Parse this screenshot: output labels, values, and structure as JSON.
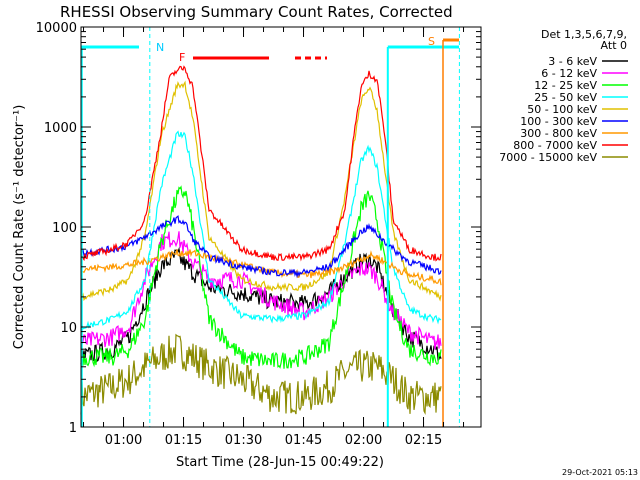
{
  "chart_data": {
    "type": "line",
    "title": "RHESSI Observing Summary Count Rates, Corrected",
    "xlabel": "Start Time (28-Jun-15 00:49:22)",
    "ylabel": "Corrected Count Rate (s⁻¹ detector⁻¹)",
    "ylabel_plain": "Corrected Count Rate (s",
    "ylabel_sup1": "-1",
    "ylabel_mid": " detector",
    "ylabel_sup2": "-1",
    "ylabel_end": ")",
    "ylim": [
      1,
      10000
    ],
    "yscale": "log",
    "xlim_minutes": [
      0,
      100
    ],
    "x_ticks": [
      {
        "label": "01:00",
        "minute": 10.63
      },
      {
        "label": "01:15",
        "minute": 25.63
      },
      {
        "label": "01:30",
        "minute": 40.63
      },
      {
        "label": "01:45",
        "minute": 55.63
      },
      {
        "label": "02:00",
        "minute": 70.63
      },
      {
        "label": "02:15",
        "minute": 85.63
      }
    ],
    "y_ticks": [
      {
        "label": "1",
        "value": 1
      },
      {
        "label": "10",
        "value": 10
      },
      {
        "label": "100",
        "value": 100
      },
      {
        "label": "1000",
        "value": 1000
      },
      {
        "label": "10000",
        "value": 10000
      }
    ],
    "legend_header": [
      "Det 1,3,5,6,7,9,",
      "Att 0"
    ],
    "series": [
      {
        "name": "3 - 6 keV",
        "color": "#000000",
        "x": [
          0,
          8,
          12,
          16,
          20,
          24,
          28,
          32,
          40,
          48,
          56,
          62,
          66,
          70,
          72,
          74,
          78,
          82,
          88,
          90
        ],
        "values": [
          5,
          6,
          8,
          18,
          40,
          52,
          35,
          25,
          22,
          18,
          17,
          22,
          32,
          45,
          48,
          40,
          15,
          8,
          6,
          5
        ]
      },
      {
        "name": "6 - 12 keV",
        "color": "#ff00ff",
        "x": [
          0,
          8,
          12,
          16,
          20,
          24,
          28,
          32,
          40,
          48,
          56,
          62,
          66,
          70,
          72,
          74,
          78,
          82,
          88,
          90
        ],
        "values": [
          7,
          8,
          10,
          30,
          70,
          80,
          45,
          30,
          30,
          18,
          14,
          20,
          30,
          38,
          38,
          32,
          14,
          9,
          7,
          7
        ]
      },
      {
        "name": "12 - 25 keV",
        "color": "#00ff00",
        "x": [
          0,
          8,
          12,
          16,
          20,
          24,
          26,
          28,
          32,
          40,
          48,
          56,
          62,
          66,
          70,
          72,
          74,
          78,
          82,
          88,
          90
        ],
        "values": [
          5,
          5,
          6,
          12,
          70,
          200,
          230,
          100,
          12,
          5,
          4.5,
          5,
          7,
          30,
          150,
          210,
          120,
          15,
          6,
          5,
          5
        ]
      },
      {
        "name": "25 - 50 keV",
        "color": "#00ffff",
        "x": [
          0,
          8,
          12,
          16,
          20,
          24,
          26,
          28,
          32,
          40,
          48,
          56,
          62,
          66,
          70,
          72,
          74,
          78,
          82,
          88,
          90
        ],
        "values": [
          10,
          12,
          15,
          30,
          250,
          850,
          800,
          350,
          30,
          13,
          12,
          13,
          18,
          70,
          450,
          620,
          400,
          40,
          15,
          12,
          12
        ]
      },
      {
        "name": "50 - 100 keV",
        "color": "#e0c000",
        "x": [
          0,
          8,
          12,
          16,
          20,
          24,
          26,
          28,
          32,
          40,
          48,
          56,
          62,
          66,
          70,
          72,
          74,
          78,
          82,
          88,
          90
        ],
        "values": [
          20,
          24,
          30,
          80,
          800,
          2600,
          2700,
          1200,
          80,
          30,
          25,
          25,
          35,
          200,
          1800,
          2500,
          1500,
          90,
          30,
          22,
          20
        ]
      },
      {
        "name": "100 - 300 keV",
        "color": "#0000ff",
        "x": [
          0,
          8,
          12,
          16,
          20,
          24,
          26,
          28,
          32,
          40,
          48,
          56,
          62,
          66,
          70,
          72,
          74,
          78,
          82,
          88,
          90
        ],
        "values": [
          55,
          60,
          65,
          80,
          100,
          120,
          110,
          75,
          50,
          40,
          35,
          35,
          40,
          60,
          90,
          100,
          85,
          60,
          45,
          38,
          36
        ]
      },
      {
        "name": "300 - 800 keV",
        "color": "#ff9900",
        "x": [
          0,
          8,
          12,
          16,
          20,
          24,
          28,
          32,
          40,
          48,
          56,
          62,
          66,
          70,
          72,
          74,
          78,
          82,
          88,
          90
        ],
        "values": [
          38,
          40,
          42,
          45,
          50,
          55,
          55,
          50,
          42,
          35,
          33,
          35,
          40,
          48,
          52,
          50,
          40,
          33,
          30,
          28
        ]
      },
      {
        "name": "800 - 7000 keV",
        "color": "#ff0000",
        "x": [
          0,
          8,
          12,
          16,
          20,
          22,
          24,
          26,
          28,
          32,
          40,
          48,
          56,
          62,
          66,
          68,
          70,
          72,
          74,
          76,
          78,
          82,
          88,
          90
        ],
        "values": [
          50,
          60,
          70,
          120,
          900,
          3000,
          3700,
          3900,
          2500,
          150,
          60,
          50,
          50,
          60,
          150,
          700,
          2500,
          3400,
          3000,
          800,
          120,
          60,
          50,
          50
        ]
      },
      {
        "name": "7000 - 15000 keV",
        "color": "#8b8b00",
        "x": [
          0,
          8,
          12,
          16,
          20,
          24,
          28,
          32,
          40,
          48,
          56,
          62,
          66,
          70,
          74,
          78,
          82,
          88,
          90
        ],
        "values": [
          2,
          2.5,
          3,
          4,
          5,
          6,
          5,
          4,
          3,
          2,
          2,
          2.5,
          3.5,
          4,
          4,
          3,
          2,
          2,
          2
        ]
      }
    ],
    "annotations": [
      {
        "text": "N",
        "color": "#00ccff"
      },
      {
        "text": "F",
        "color": "#ff0000"
      },
      {
        "text": "S",
        "color": "#ff7f00"
      }
    ],
    "timestamp": "29-Oct-2021 05:13"
  }
}
